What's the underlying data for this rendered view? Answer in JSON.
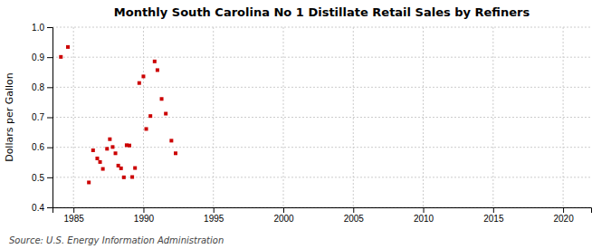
{
  "chart_data": {
    "type": "scatter",
    "title": "Monthly South Carolina No 1 Distillate Retail Sales by Refiners",
    "ylabel": "Dollars per Gallon",
    "annotation": "Source: U.S. Energy Information Administration",
    "color": "#cc0000",
    "marker": "square",
    "grid": true,
    "xlim": [
      1983.5,
      2022
    ],
    "ylim": [
      0.4,
      1.0
    ],
    "xticks": [
      1985,
      1990,
      1995,
      2000,
      2005,
      2010,
      2015,
      2020
    ],
    "yticks": [
      0.4,
      0.5,
      0.6,
      0.7,
      0.8,
      0.9,
      {
        "value": 1.0,
        "label": "1.0"
      }
    ],
    "x": [
      1984.1,
      1984.6,
      1986.1,
      1986.4,
      1986.7,
      1986.9,
      1987.1,
      1987.4,
      1987.6,
      1987.8,
      1988.0,
      1988.2,
      1988.4,
      1988.6,
      1988.8,
      1989.0,
      1989.2,
      1989.4,
      1989.7,
      1990.0,
      1990.2,
      1990.5,
      1990.8,
      1991.0,
      1991.3,
      1991.6,
      1992.0,
      1992.3
    ],
    "values": [
      0.901,
      0.934,
      0.483,
      0.59,
      0.563,
      0.551,
      0.528,
      0.595,
      0.627,
      0.601,
      0.58,
      0.539,
      0.53,
      0.5,
      0.607,
      0.606,
      0.501,
      0.531,
      0.814,
      0.836,
      0.661,
      0.704,
      0.886,
      0.857,
      0.761,
      0.712,
      0.622,
      0.58
    ]
  }
}
